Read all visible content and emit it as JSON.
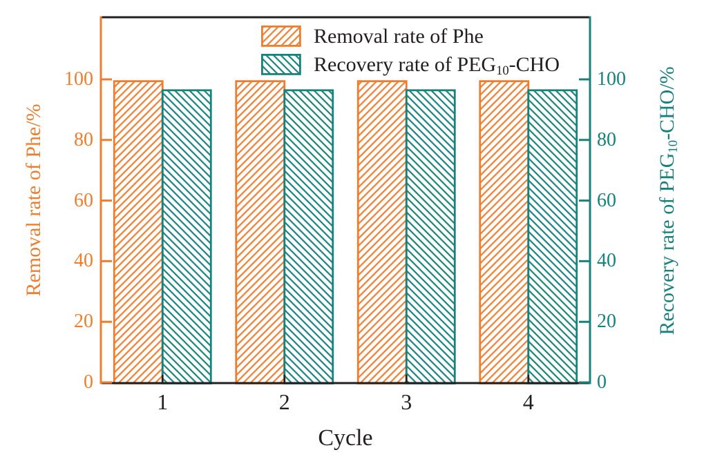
{
  "figure": {
    "background": "#ffffff",
    "text_color": "#231f20"
  },
  "chart_data": {
    "type": "bar",
    "title": "",
    "xlabel": "Cycle",
    "categories": [
      "1",
      "2",
      "3",
      "4"
    ],
    "series": [
      {
        "name": "Removal rate of Phe",
        "values": [
          99.4,
          99.4,
          99.4,
          99.4
        ],
        "color": "#ee7d2e",
        "hatch": "/",
        "axis": "left"
      },
      {
        "name": "Recovery rate of PEG10-CHO",
        "values": [
          96.4,
          96.4,
          96.4,
          96.4
        ],
        "color": "#17817e",
        "hatch": "\\",
        "axis": "right"
      }
    ],
    "left_axis": {
      "label": "Removal rate of Phe/%",
      "ticks": [
        0,
        20,
        40,
        60,
        80,
        100
      ],
      "lim": [
        0,
        120.5
      ],
      "color": "#ee7d2e"
    },
    "right_axis": {
      "label_prefix": "Recovery rate of PEG",
      "label_sub": "10",
      "label_suffix": "-CHO/%",
      "ticks": [
        0,
        20,
        40,
        60,
        80,
        100
      ],
      "lim": [
        0,
        120.5
      ],
      "color": "#17817e"
    },
    "x_axis": {
      "color": "#231f20"
    },
    "legend": {
      "position": "top-center-inside",
      "items": [
        {
          "label": "Removal rate of Phe"
        },
        {
          "label_prefix": "Recovery rate of PEG",
          "label_sub": "10",
          "label_suffix": "-CHO"
        }
      ]
    },
    "grid": false
  }
}
